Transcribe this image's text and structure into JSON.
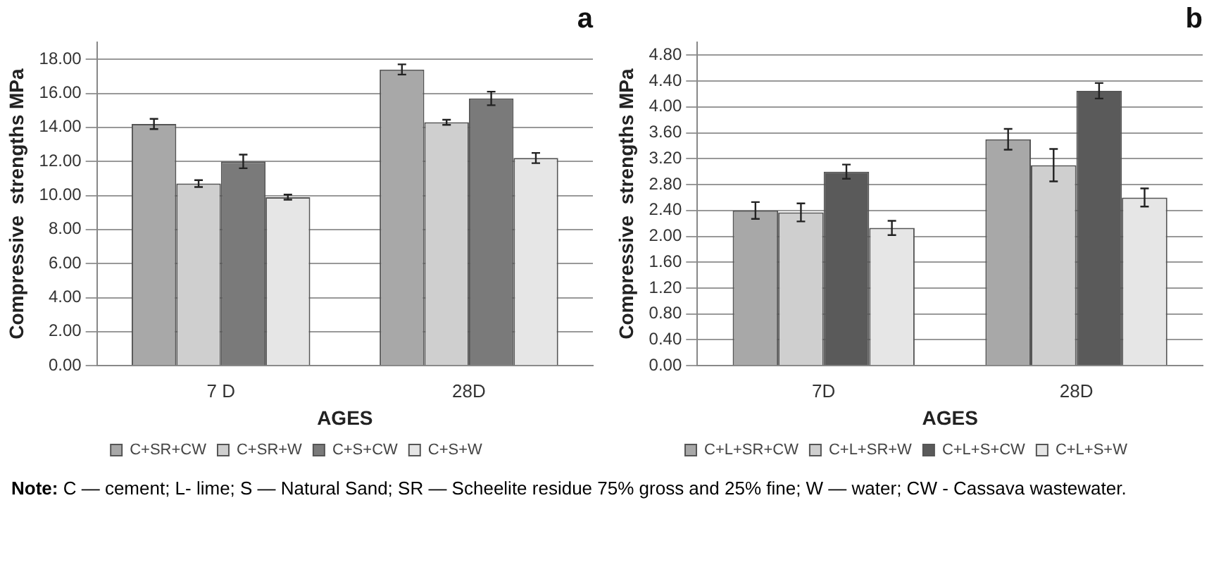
{
  "chart_data": [
    {
      "type": "bar",
      "title": "a",
      "xlabel": "AGES",
      "ylabel": "Compressive  strengths MPa",
      "categories": [
        "7 D",
        "28D"
      ],
      "series": [
        {
          "name": "C+SR+CW",
          "color": "#a8a8a8",
          "values": [
            14.2,
            17.4
          ],
          "errors": [
            0.3,
            0.3
          ]
        },
        {
          "name": "C+SR+W",
          "color": "#cfcfcf",
          "values": [
            10.7,
            14.3
          ],
          "errors": [
            0.2,
            0.15
          ]
        },
        {
          "name": "C+S+CW",
          "color": "#7a7a7a",
          "values": [
            12.0,
            15.7
          ],
          "errors": [
            0.4,
            0.4
          ]
        },
        {
          "name": "C+S+W",
          "color": "#e6e6e6",
          "values": [
            9.9,
            12.2
          ],
          "errors": [
            0.15,
            0.3
          ]
        }
      ],
      "ylim": [
        0,
        19
      ],
      "yticks": [
        {
          "value": 0,
          "label": "0.00"
        },
        {
          "value": 2,
          "label": "2.00"
        },
        {
          "value": 4,
          "label": "4.00"
        },
        {
          "value": 6,
          "label": "6.00"
        },
        {
          "value": 8,
          "label": "8.00"
        },
        {
          "value": 10,
          "label": "10.00"
        },
        {
          "value": 12,
          "label": "12.00"
        },
        {
          "value": 14,
          "label": "14.00"
        },
        {
          "value": 16,
          "label": "16.00"
        },
        {
          "value": 18,
          "label": "18.00"
        }
      ],
      "grid": "y",
      "legend": "bottom",
      "annotations": [
        "Note: C — cement; L- lime; S — Natural Sand; SR — Scheelite residue 75% gross and 25% fine; W — water; CW - Cassava wastewater."
      ]
    },
    {
      "type": "bar",
      "title": "b",
      "xlabel": "AGES",
      "ylabel": "Compressive  strengths MPa",
      "categories": [
        "7D",
        "28D"
      ],
      "series": [
        {
          "name": "C+L+SR+CW",
          "color": "#a8a8a8",
          "values": [
            2.4,
            3.5
          ],
          "errors": [
            0.13,
            0.16
          ]
        },
        {
          "name": "C+L+SR+W",
          "color": "#cfcfcf",
          "values": [
            2.37,
            3.1
          ],
          "errors": [
            0.14,
            0.25
          ]
        },
        {
          "name": "C+L+S+CW",
          "color": "#5a5a5a",
          "values": [
            3.0,
            4.25
          ],
          "errors": [
            0.11,
            0.12
          ]
        },
        {
          "name": "C+L+S+W",
          "color": "#e6e6e6",
          "values": [
            2.13,
            2.6
          ],
          "errors": [
            0.11,
            0.14
          ]
        }
      ],
      "ylim": [
        0,
        5
      ],
      "yticks": [
        {
          "value": 0,
          "label": "0.00"
        },
        {
          "value": 0.4,
          "label": "0.40"
        },
        {
          "value": 0.8,
          "label": "0.80"
        },
        {
          "value": 1.2,
          "label": "1.20"
        },
        {
          "value": 1.6,
          "label": "1.60"
        },
        {
          "value": 2,
          "label": "2.00"
        },
        {
          "value": 2.4,
          "label": "2.40"
        },
        {
          "value": 2.8,
          "label": "2.80"
        },
        {
          "value": 3.2,
          "label": "3.20"
        },
        {
          "value": 3.6,
          "label": "3.60"
        },
        {
          "value": 4,
          "label": "4.00"
        },
        {
          "value": 4.4,
          "label": "4.40"
        },
        {
          "value": 4.8,
          "label": "4.80"
        }
      ],
      "grid": "y",
      "legend": "bottom"
    }
  ]
}
